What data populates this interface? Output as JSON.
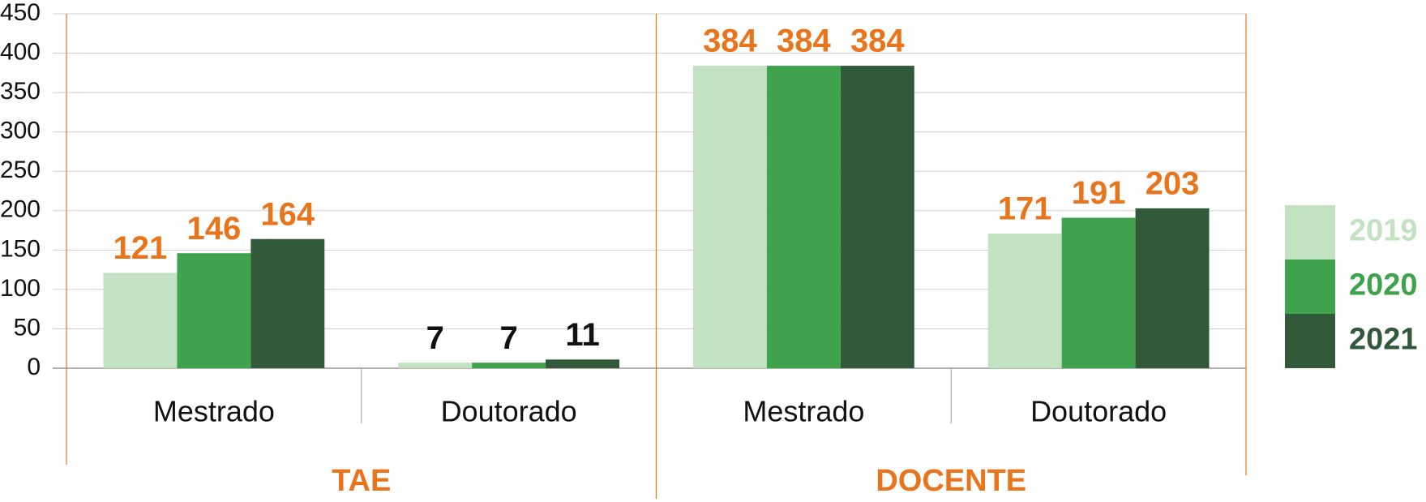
{
  "chart_data": {
    "type": "bar",
    "groups": [
      "TAE",
      "DOCENTE"
    ],
    "categories": [
      "Mestrado",
      "Doutorado",
      "Mestrado",
      "Doutorado"
    ],
    "series": [
      {
        "name": "2019",
        "color": "#c3e2c2",
        "values": [
          121,
          7,
          384,
          171
        ]
      },
      {
        "name": "2020",
        "color": "#3fa34d",
        "values": [
          146,
          7,
          384,
          191
        ]
      },
      {
        "name": "2021",
        "color": "#32593a",
        "values": [
          164,
          11,
          384,
          203
        ]
      }
    ],
    "label_colors": [
      "#e8741c",
      "#111111",
      "#e8741c",
      "#e8741c"
    ],
    "ylim": [
      0,
      450
    ],
    "yticks": [
      0,
      50,
      100,
      150,
      200,
      250,
      300,
      350,
      400,
      450
    ],
    "grid": true,
    "legend": "right"
  }
}
